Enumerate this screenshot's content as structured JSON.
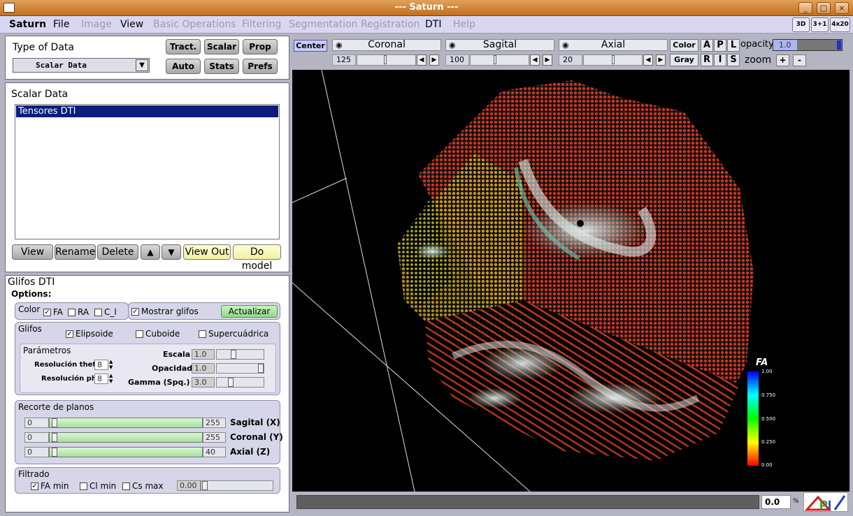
{
  "window": {
    "title": "--- Saturn ---",
    "controls": [
      "_",
      "□",
      "×"
    ]
  },
  "menu": {
    "items": [
      {
        "label": "Saturn",
        "enabled": true
      },
      {
        "label": "File",
        "enabled": true
      },
      {
        "label": "Image",
        "enabled": false
      },
      {
        "label": "View",
        "enabled": true
      },
      {
        "label": "Basic Operations",
        "enabled": false
      },
      {
        "label": "Filtering",
        "enabled": false
      },
      {
        "label": "Segmentation",
        "enabled": false
      },
      {
        "label": "Registration",
        "enabled": false
      },
      {
        "label": "DTI",
        "enabled": true
      },
      {
        "label": "Help",
        "enabled": false
      }
    ],
    "view_buttons": [
      "3D",
      "3+1",
      "4x20"
    ]
  },
  "data_type": {
    "label": "Type of Data",
    "selected": "Scalar Data",
    "buttons": [
      "Tract.",
      "Scalar",
      "Prop",
      "Auto",
      "Stats",
      "Prefs"
    ]
  },
  "scalar_data": {
    "title": "Scalar Data",
    "items": [
      "Tensores DTI"
    ],
    "buttons": {
      "view": "View",
      "rename": "Rename",
      "delete": "Delete",
      "up": "▲",
      "down": "▼",
      "view_out": "View Out",
      "do_model": "Do model"
    }
  },
  "glifos": {
    "title": "Glifos DTI",
    "options_label": "Options:",
    "color": {
      "label": "Color",
      "fa": "FA",
      "ra": "RA",
      "ci": "C_l",
      "fa_checked": true,
      "ra_checked": false,
      "ci_checked": false
    },
    "mostrar": {
      "label": "Mostrar glifos",
      "checked": true
    },
    "actualizar": "Actualizar",
    "glifos_group": {
      "label": "Glifos",
      "elipsoide": "Elipsoide",
      "cuboide": "Cuboide",
      "supercuadrica": "Supercuádrica",
      "elipsoide_checked": true,
      "cuboide_checked": false,
      "supercuadrica_checked": false
    },
    "parametros": {
      "label": "Parámetros",
      "res_theta_label": "Resolución theta",
      "res_theta": "8",
      "res_phi_label": "Resolución phi",
      "res_phi": "8",
      "escala_label": "Escala",
      "escala": "1.0",
      "opacidad_label": "Opacidad",
      "opacidad": "1.0",
      "gamma_label": "Gamma (Spq.)",
      "gamma": "3.0"
    },
    "recorte": {
      "label": "Recorte de planos",
      "rows": [
        {
          "min": "0",
          "max": "255",
          "label": "Sagital (X)"
        },
        {
          "min": "0",
          "max": "255",
          "label": "Coronal (Y)"
        },
        {
          "min": "0",
          "max": "40",
          "label": "Axial (Z)"
        }
      ]
    },
    "filtrado": {
      "label": "Filtrado",
      "fa_min": "FA min",
      "cl_min": "Cl min",
      "cs_max": "Cs max",
      "fa_checked": true,
      "cl_checked": false,
      "cs_checked": false,
      "value": "0.00"
    }
  },
  "viewer_toolbar": {
    "center": "Center",
    "coronal": {
      "label": "Coronal",
      "value": "125"
    },
    "sagital": {
      "label": "Sagital",
      "value": "100"
    },
    "axial": {
      "label": "Axial",
      "value": "20"
    },
    "color": "Color",
    "gray": "Gray",
    "letters_top": [
      "A",
      "P",
      "L"
    ],
    "letters_bottom": [
      "R",
      "I",
      "S"
    ],
    "opacity_label": "opacity",
    "opacity_value": "1.0",
    "zoom_label": "zoom",
    "zoom_in": "+",
    "zoom_out": "-"
  },
  "colorbar": {
    "title": "FA",
    "ticks": [
      "1.00",
      "0.750",
      "0.500",
      "0.250",
      "0.00"
    ]
  },
  "statusbar": {
    "progress_value": "0.0",
    "unit": "%",
    "progress_fraction": 0
  },
  "colors": {
    "menubar": "#d9d6f2",
    "titlebar": "#d08633",
    "selection": "#0a1e7a",
    "viewer_bg": "#000000"
  }
}
